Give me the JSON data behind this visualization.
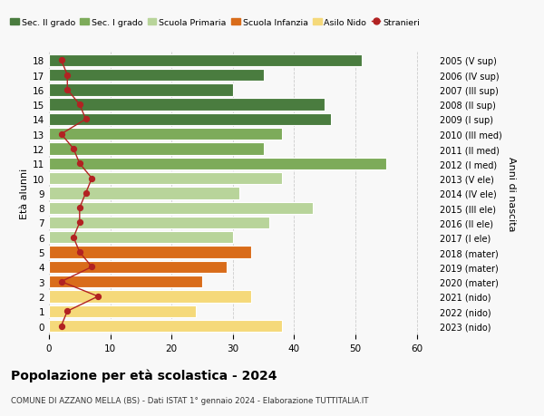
{
  "ages": [
    18,
    17,
    16,
    15,
    14,
    13,
    12,
    11,
    10,
    9,
    8,
    7,
    6,
    5,
    4,
    3,
    2,
    1,
    0
  ],
  "years": [
    "2005 (V sup)",
    "2006 (IV sup)",
    "2007 (III sup)",
    "2008 (II sup)",
    "2009 (I sup)",
    "2010 (III med)",
    "2011 (II med)",
    "2012 (I med)",
    "2013 (V ele)",
    "2014 (IV ele)",
    "2015 (III ele)",
    "2016 (II ele)",
    "2017 (I ele)",
    "2018 (mater)",
    "2019 (mater)",
    "2020 (mater)",
    "2021 (nido)",
    "2022 (nido)",
    "2023 (nido)"
  ],
  "bar_values": [
    51,
    35,
    30,
    45,
    46,
    38,
    35,
    55,
    38,
    31,
    43,
    36,
    30,
    33,
    29,
    25,
    33,
    24,
    38
  ],
  "bar_colors": [
    "#4a7c3f",
    "#4a7c3f",
    "#4a7c3f",
    "#4a7c3f",
    "#4a7c3f",
    "#7dab5a",
    "#7dab5a",
    "#7dab5a",
    "#b8d49a",
    "#b8d49a",
    "#b8d49a",
    "#b8d49a",
    "#b8d49a",
    "#d96c1a",
    "#d96c1a",
    "#d96c1a",
    "#f5d97a",
    "#f5d97a",
    "#f5d97a"
  ],
  "stranieri": [
    2,
    3,
    3,
    5,
    6,
    2,
    4,
    5,
    7,
    6,
    5,
    5,
    4,
    5,
    7,
    2,
    8,
    3,
    2
  ],
  "stranieri_color": "#b22222",
  "title": "Popolazione per età scolastica - 2024",
  "subtitle": "COMUNE DI AZZANO MELLA (BS) - Dati ISTAT 1° gennaio 2024 - Elaborazione TUTTITALIA.IT",
  "ylabel_left": "Età alunni",
  "ylabel_right": "Anni di nascita",
  "bg_color": "#f8f8f8",
  "grid_color": "#cccccc",
  "legend_items": [
    {
      "label": "Sec. II grado",
      "color": "#4a7c3f"
    },
    {
      "label": "Sec. I grado",
      "color": "#7dab5a"
    },
    {
      "label": "Scuola Primaria",
      "color": "#b8d49a"
    },
    {
      "label": "Scuola Infanzia",
      "color": "#d96c1a"
    },
    {
      "label": "Asilo Nido",
      "color": "#f5d97a"
    },
    {
      "label": "Stranieri",
      "color": "#b22222"
    }
  ],
  "xlim": [
    0,
    63
  ],
  "bar_height": 0.82
}
